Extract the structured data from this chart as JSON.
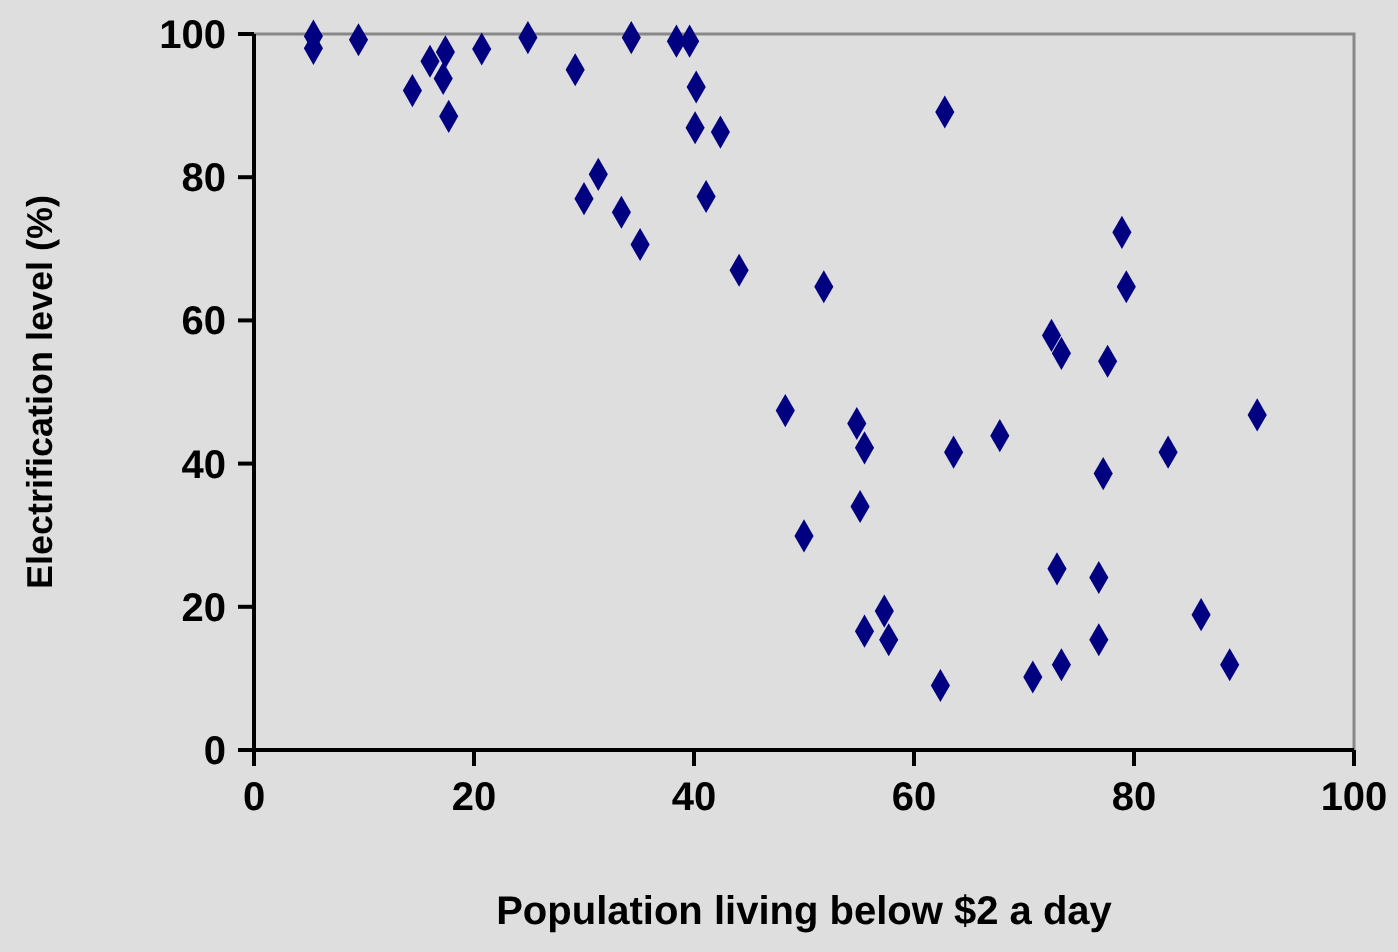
{
  "chart_data": {
    "type": "scatter",
    "xlabel": "Population living below $2 a day",
    "ylabel": "Electrification level (%)",
    "xlim": [
      0,
      100
    ],
    "ylim": [
      0,
      100
    ],
    "xticks": [
      0,
      20,
      40,
      60,
      80,
      100
    ],
    "yticks": [
      0,
      20,
      40,
      60,
      80,
      100
    ],
    "grid": false,
    "marker": "diamond",
    "series": [
      {
        "color": "#000080",
        "x": [
          5.4,
          5.4,
          9.5,
          16,
          17.4,
          17.2,
          14.4,
          17.7,
          20.7,
          24.9,
          29.2,
          34.3,
          38.4,
          39.6,
          40.2,
          40.1,
          42.4,
          31.3,
          30,
          33.4,
          35.1,
          41.1,
          44.1,
          51.8,
          62.8,
          78.9,
          79.3,
          72.5,
          73.4,
          77.6,
          48.3,
          54.8,
          55.5,
          63.6,
          67.8,
          77.2,
          83.1,
          91.2,
          55.1,
          50,
          73,
          76.8,
          57.3,
          55.5,
          57.7,
          86.1,
          76.8,
          73.4,
          70.8,
          88.7,
          62.4
        ],
        "values": [
          99.7,
          98,
          99.2,
          96.2,
          97.5,
          93.8,
          92.1,
          88.5,
          97.9,
          99.5,
          95,
          99.5,
          99,
          99,
          92.6,
          86.9,
          86.3,
          80.4,
          77,
          75.1,
          70.6,
          77.3,
          67,
          64.7,
          89.1,
          72.3,
          64.7,
          57.9,
          55.4,
          54.3,
          47.4,
          45.6,
          42.2,
          41.6,
          43.9,
          38.6,
          41.6,
          46.8,
          34,
          29.9,
          25.3,
          24.1,
          19.4,
          16.6,
          15.4,
          18.9,
          15.4,
          11.9,
          10.2,
          11.9,
          9
        ]
      }
    ]
  }
}
